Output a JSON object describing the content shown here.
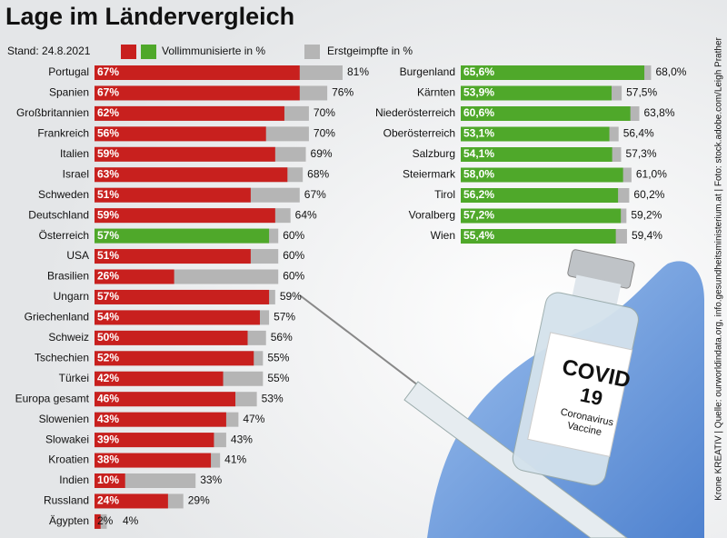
{
  "title": "Lage im Ländervergleich",
  "stand": "Stand: 24.8.2021",
  "credit": "Krone KREATIV | Quelle: ourworldindata.org, info.gesundheitsministerium.at | Foto: stock.adobe.com/Leigh Prather",
  "photo": {
    "label_lines": [
      "COVID",
      "19",
      "Coronavirus",
      "Vaccine"
    ]
  },
  "chart_data": [
    {
      "type": "bar",
      "orientation": "horizontal",
      "categories": [
        "Portugal",
        "Spanien",
        "Großbritannien",
        "Frankreich",
        "Italien",
        "Israel",
        "Schweden",
        "Deutschland",
        "Österreich",
        "USA",
        "Brasilien",
        "Ungarn",
        "Griechenland",
        "Schweiz",
        "Tschechien",
        "Türkei",
        "Europa gesamt",
        "Slowenien",
        "Slowakei",
        "Kroatien",
        "Indien",
        "Russland",
        "Ägypten"
      ],
      "series": [
        {
          "name": "Vollimmunisierte in %",
          "colors": [
            "#c8201e",
            "#c8201e",
            "#c8201e",
            "#c8201e",
            "#c8201e",
            "#c8201e",
            "#c8201e",
            "#c8201e",
            "#4fa82a",
            "#c8201e",
            "#c8201e",
            "#c8201e",
            "#c8201e",
            "#c8201e",
            "#c8201e",
            "#c8201e",
            "#c8201e",
            "#c8201e",
            "#c8201e",
            "#c8201e",
            "#c8201e",
            "#c8201e",
            "#c8201e"
          ],
          "values": [
            67,
            67,
            62,
            56,
            59,
            63,
            51,
            59,
            57,
            51,
            26,
            57,
            54,
            50,
            52,
            42,
            46,
            43,
            39,
            38,
            10,
            24,
            2
          ],
          "value_labels": [
            "67%",
            "67%",
            "62%",
            "56%",
            "59%",
            "63%",
            "51%",
            "59%",
            "57%",
            "51%",
            "26%",
            "57%",
            "54%",
            "50%",
            "52%",
            "42%",
            "46%",
            "43%",
            "39%",
            "38%",
            "10%",
            "24%",
            "2%"
          ]
        },
        {
          "name": "Erstgeimpfte in %",
          "color": "#b5b5b5",
          "values": [
            81,
            76,
            70,
            70,
            69,
            68,
            67,
            64,
            60,
            60,
            60,
            59,
            57,
            56,
            55,
            55,
            53,
            47,
            43,
            41,
            33,
            29,
            4
          ],
          "value_labels": [
            "81%",
            "76%",
            "70%",
            "70%",
            "69%",
            "68%",
            "67%",
            "64%",
            "60%",
            "60%",
            "60%",
            "59%",
            "57%",
            "56%",
            "55%",
            "55%",
            "53%",
            "47%",
            "43%",
            "41%",
            "33%",
            "29%",
            "4%"
          ]
        }
      ]
    },
    {
      "type": "bar",
      "orientation": "horizontal",
      "categories": [
        "Burgenland",
        "Kärnten",
        "Niederösterreich",
        "Oberösterreich",
        "Salzburg",
        "Steiermark",
        "Tirol",
        "Voralberg",
        "Wien"
      ],
      "series": [
        {
          "color": "#4fa82a",
          "values": [
            65.6,
            53.9,
            60.6,
            53.1,
            54.1,
            58.0,
            56.2,
            57.2,
            55.4
          ],
          "value_labels": [
            "65,6%",
            "53,9%",
            "60,6%",
            "53,1%",
            "54,1%",
            "58,0%",
            "56,2%",
            "57,2%",
            "55,4%"
          ]
        },
        {
          "color": "#b5b5b5",
          "values": [
            68.0,
            57.5,
            63.8,
            56.4,
            57.3,
            61.0,
            60.2,
            59.2,
            59.4
          ],
          "value_labels": [
            "68,0%",
            "57,5%",
            "63,8%",
            "56,4%",
            "57,3%",
            "61,0%",
            "60,2%",
            "59,2%",
            "59,4%"
          ]
        }
      ]
    }
  ]
}
